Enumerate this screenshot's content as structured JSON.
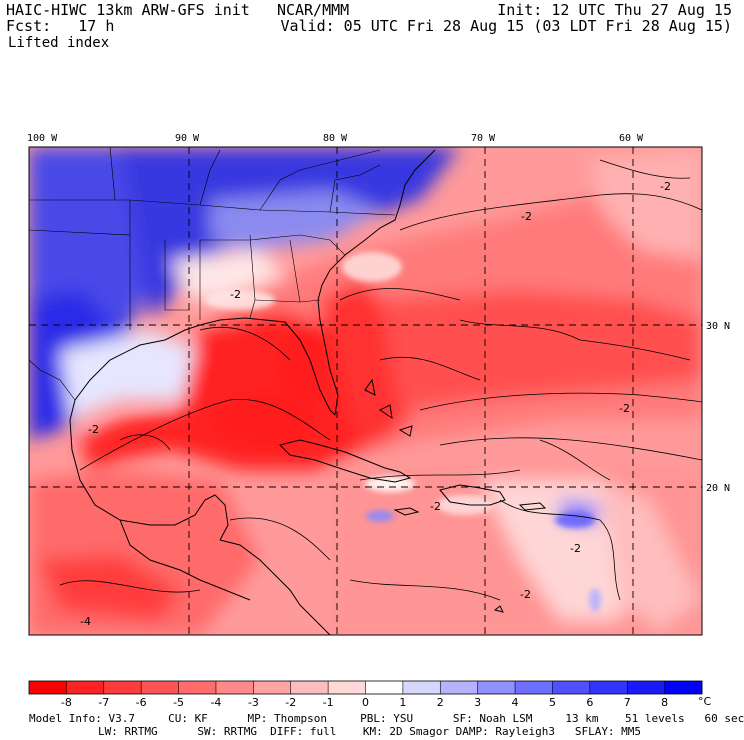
{
  "header": {
    "model": "HAIC-HIWC 13km ARW-GFS init",
    "org": "NCAR/MMM",
    "init": "Init: 12 UTC Thu 27 Aug 15",
    "fcst_label": "Fcst:",
    "fcst_value": "17 h",
    "valid": "Valid: 05 UTC Fri 28 Aug 15 (03 LDT Fri 28 Aug 15)",
    "field": "Lifted index"
  },
  "axes": {
    "lon_labels": [
      {
        "value": -100,
        "text": "100 W"
      },
      {
        "value": -90,
        "text": "90 W"
      },
      {
        "value": -80,
        "text": "80 W"
      },
      {
        "value": -70,
        "text": "70 W"
      },
      {
        "value": -60,
        "text": "60 W"
      }
    ],
    "lat_labels": [
      {
        "value": 30,
        "text": "30 N"
      },
      {
        "value": 20,
        "text": "20 N"
      }
    ]
  },
  "colorbar": {
    "unit": "°C",
    "ticks": [
      "-8",
      "-7",
      "-6",
      "-5",
      "-4",
      "-3",
      "-2",
      "-1",
      "0",
      "1",
      "2",
      "3",
      "4",
      "5",
      "6",
      "7",
      "8"
    ],
    "colors": [
      "#ff0000",
      "#ff2222",
      "#ff3c3c",
      "#ff5454",
      "#ff6c6c",
      "#ff8888",
      "#ffa3a3",
      "#ffbcbc",
      "#ffd8d8",
      "#ffffff",
      "#d6d6ff",
      "#b3b3ff",
      "#9090ff",
      "#6e6eff",
      "#5050ff",
      "#3434ff",
      "#1a1aff",
      "#0000ff"
    ]
  },
  "model_info": {
    "line1": "Model Info: V3.7     CU: KF      MP: Thompson     PBL: YSU      SF: Noah LSM     13 km    51 levels   60 sec",
    "line2": "LW: RRTMG      SW: RRTMG  DIFF: full    KM: 2D Smagor DAMP: Rayleigh3   SFLAY: MM5"
  },
  "map_colors": {
    "stable": "#4a4ae8",
    "neutral": "#ffdede",
    "unstable": "#ff6060",
    "very_unstable": "#ff2a2a"
  }
}
